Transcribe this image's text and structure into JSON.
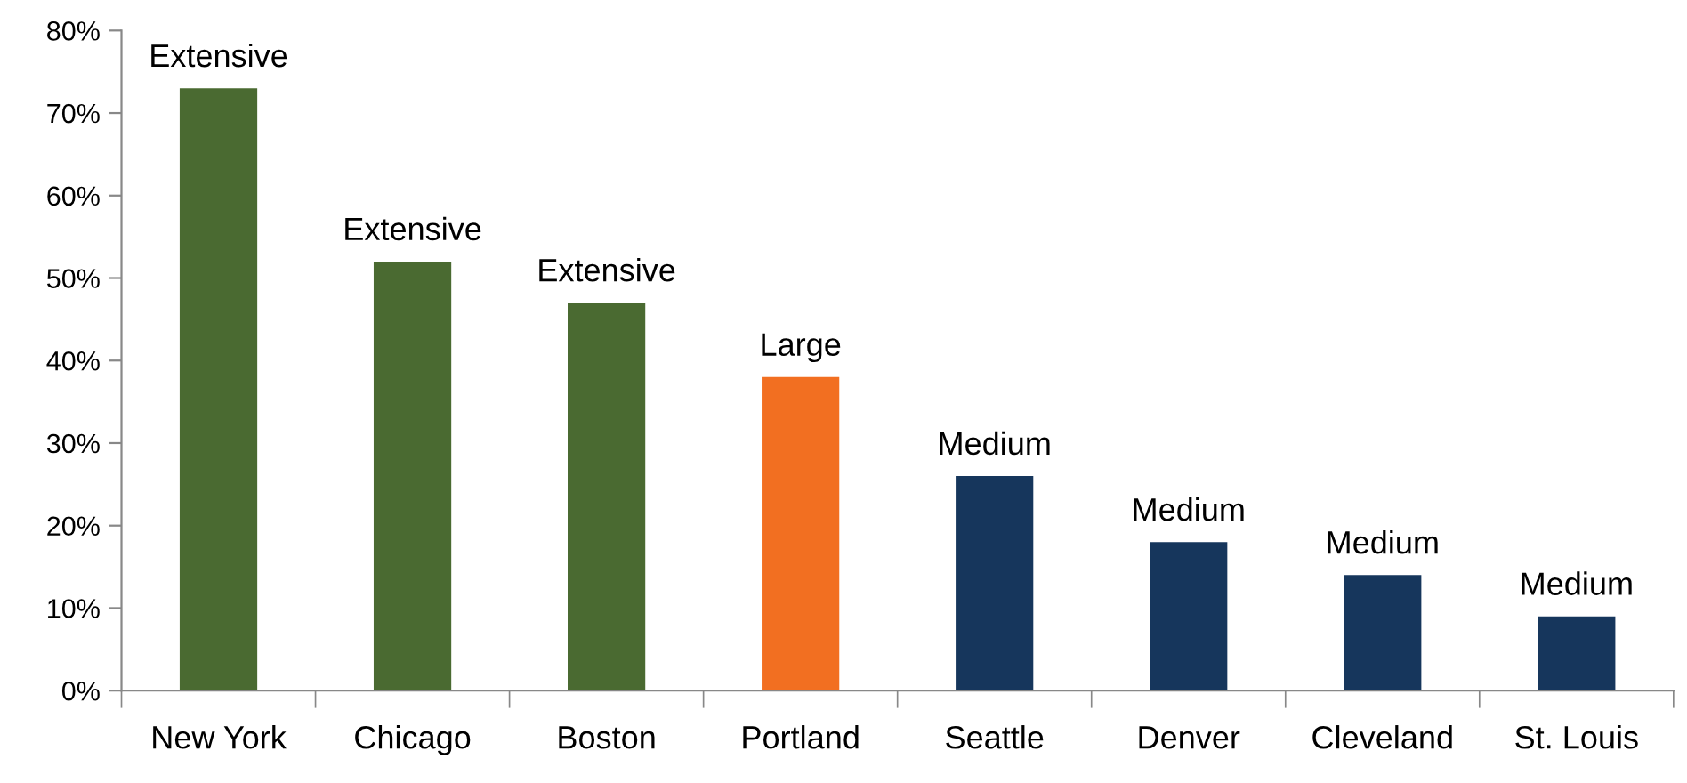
{
  "chart_data": {
    "type": "bar",
    "categories": [
      "New York",
      "Chicago",
      "Boston",
      "Portland",
      "Seattle",
      "Denver",
      "Cleveland",
      "St. Louis"
    ],
    "values": [
      73,
      52,
      47,
      38,
      26,
      18,
      14,
      9
    ],
    "colors": [
      "#4a6a31",
      "#4a6a31",
      "#4a6a31",
      "#f26f21",
      "#16365c",
      "#16365c",
      "#16365c",
      "#16365c"
    ],
    "value_labels": [
      "Extensive",
      "Extensive",
      "Extensive",
      "Large",
      "Medium",
      "Medium",
      "Medium",
      "Medium"
    ],
    "ylim": [
      0,
      80
    ],
    "yticks": [
      {
        "value": 0,
        "label": "0%"
      },
      {
        "value": 10,
        "label": "10%"
      },
      {
        "value": 20,
        "label": "20%"
      },
      {
        "value": 30,
        "label": "30%"
      },
      {
        "value": 40,
        "label": "40%"
      },
      {
        "value": 50,
        "label": "50%"
      },
      {
        "value": 60,
        "label": "60%"
      },
      {
        "value": 70,
        "label": "70%"
      },
      {
        "value": 80,
        "label": "80%"
      }
    ],
    "grid": false,
    "legend": false
  }
}
